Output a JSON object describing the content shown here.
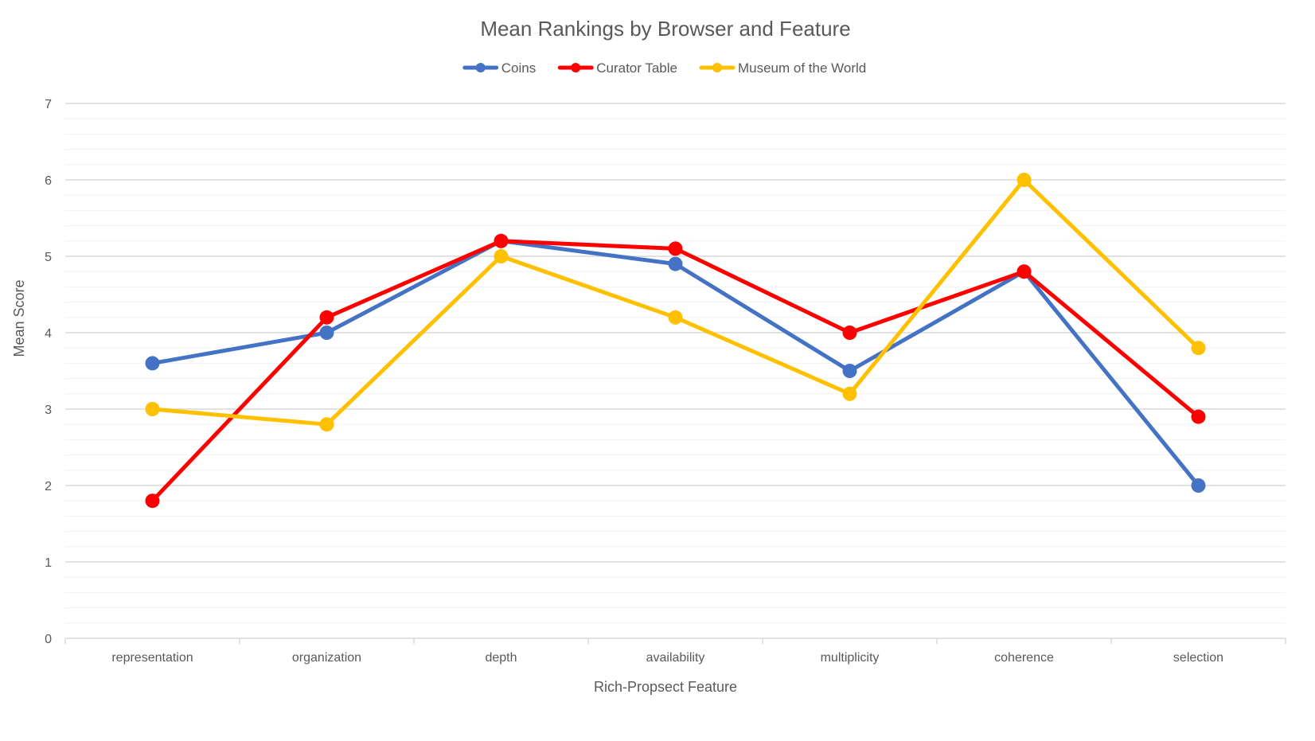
{
  "chart_data": {
    "type": "line",
    "title": "Mean Rankings by Browser and Feature",
    "xlabel": "Rich-Propsect Feature",
    "ylabel": "Mean Score",
    "ylim": [
      0,
      7
    ],
    "y_major_step": 1,
    "y_minor_step": 0.2,
    "grid": true,
    "legend_position": "top-center",
    "categories": [
      "representation",
      "organization",
      "depth",
      "availability",
      "multiplicity",
      "coherence",
      "selection"
    ],
    "series": [
      {
        "name": "Coins",
        "color": "#4472C4",
        "values": [
          3.6,
          4.0,
          5.2,
          4.9,
          3.5,
          4.8,
          2.0
        ]
      },
      {
        "name": "Curator Table",
        "color": "#FF0000",
        "values": [
          1.8,
          4.2,
          5.2,
          5.1,
          4.0,
          4.8,
          2.9
        ]
      },
      {
        "name": "Museum of the World",
        "color": "#FFC000",
        "values": [
          3.0,
          2.8,
          5.0,
          4.2,
          3.2,
          6.0,
          3.8
        ]
      }
    ]
  }
}
